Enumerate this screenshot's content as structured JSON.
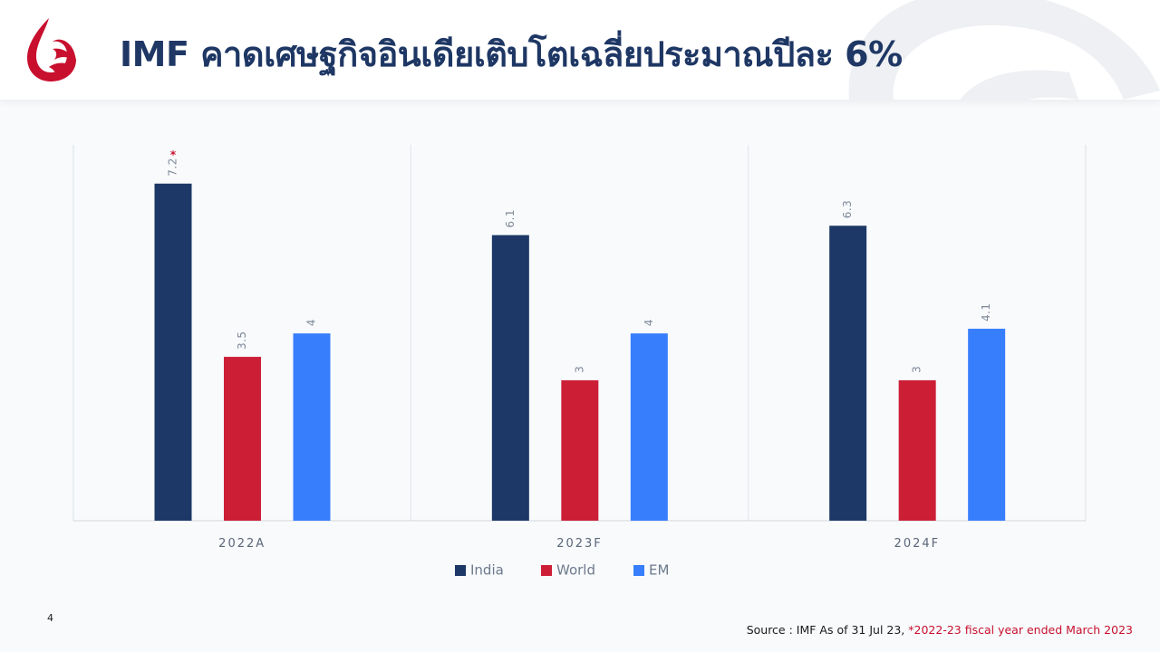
{
  "header": {
    "title": "IMF คาดเศษฐกิจอินเดียเติบโตเฉลี่ยประมาณปีละ 6%"
  },
  "colors": {
    "india": "#1d3866",
    "world": "#cc1f36",
    "em": "#377efc",
    "title": "#1e3764",
    "brand_red": "#c8102e"
  },
  "chart_data": {
    "type": "bar",
    "categories": [
      "2022A",
      "2023F",
      "2024F"
    ],
    "series": [
      {
        "name": "India",
        "values": [
          7.2,
          6.1,
          6.3
        ]
      },
      {
        "name": "World",
        "values": [
          3.5,
          3,
          3
        ]
      },
      {
        "name": "EM",
        "values": [
          4,
          4,
          4.1
        ]
      }
    ],
    "data_labels": [
      [
        "7.2",
        "3.5",
        "4"
      ],
      [
        "6.1",
        "3",
        "4"
      ],
      [
        "6.3",
        "3",
        "4.1"
      ]
    ],
    "annotations": [
      {
        "category": "2022A",
        "series": "India",
        "text": "*"
      }
    ],
    "ylim": [
      0,
      8
    ],
    "grid": false,
    "legend": "bottom"
  },
  "footer": {
    "page_number": "4",
    "source": "Source : IMF As of 31 Jul 23,",
    "note": "*2022-23 fiscal year ended March 2023"
  }
}
